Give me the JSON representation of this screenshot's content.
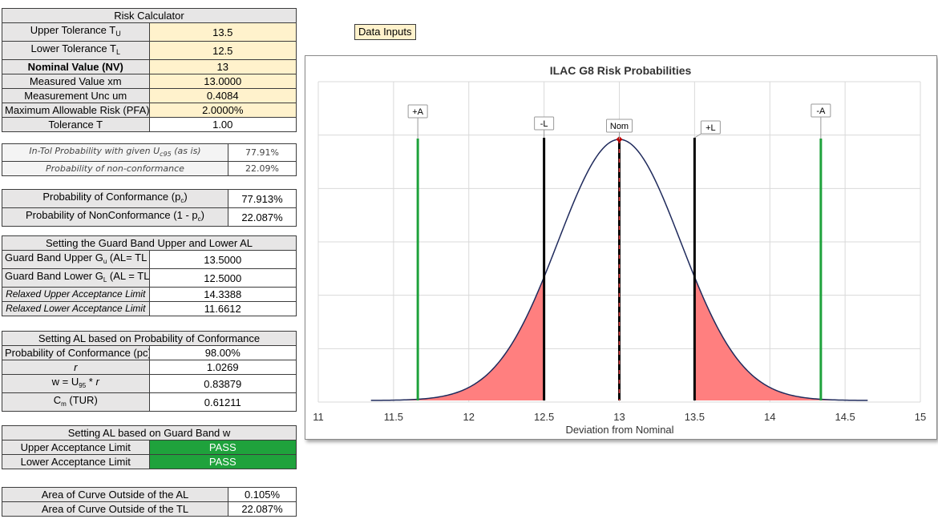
{
  "calculator": {
    "title": "Risk Calculator",
    "upper_tol_label": "Upper Tolerance T",
    "upper_tol_sub": "U",
    "upper_tol_value": "13.5",
    "lower_tol_label": "Lower Tolerance T",
    "lower_tol_sub": "L",
    "lower_tol_value": "12.5",
    "nominal_label": "Nominal Value (NV)",
    "nominal_value": "13",
    "measured_label": "Measured Value xm",
    "measured_value": "13.0000",
    "unc_label": "Measurement Unc um",
    "unc_value": "0.4084",
    "pfa_label": "Maximum Allowable Risk (PFA)",
    "pfa_value": "2.0000%",
    "tolerance_label": "Tolerance T",
    "tolerance_value": "1.00"
  },
  "intol": {
    "row1_label_a": "In-Tol Probability with given U",
    "row1_label_sub": "c95",
    "row1_label_b": " (as is)",
    "row1_value": "77.91%",
    "row2_label": "Probability of non-conformance",
    "row2_value": "22.09%"
  },
  "conformance": {
    "row1_label_a": "Probability of Conformance (p",
    "row1_label_sub": "c",
    "row1_label_b": ")",
    "row1_value": "77.913%",
    "row2_label_a": "Probability of NonConformance (1 - p",
    "row2_label_sub": "c",
    "row2_label_b": ")",
    "row2_value": "22.087%"
  },
  "guard_band": {
    "header": "Setting the Guard Band Upper and Lower  AL",
    "upper_label_a": "Guard Band Upper G",
    "upper_label_sub": "u",
    "upper_label_b": " (AL= TL - w)",
    "upper_value": "13.5000",
    "lower_label_a": "Guard Band Lower G",
    "lower_label_sub": "L",
    "lower_label_b": " (AL = TL + w)",
    "lower_value": "12.5000",
    "relaxed_upper_label": "Relaxed Upper Acceptance Limit",
    "relaxed_upper_value": "14.3388",
    "relaxed_lower_label": "Relaxed Lower Acceptance Limit",
    "relaxed_lower_value": "11.6612"
  },
  "al_conformance": {
    "header": "Setting AL based on Probability of Conformance",
    "pc_label": "Probability of Conformance (pc)",
    "pc_value": "98.00%",
    "r_label": "r",
    "r_value": "1.0269",
    "w_label_a": "w = U",
    "w_label_sub": "95",
    "w_label_b": " * ",
    "w_label_r": "r",
    "w_value": "0.83879",
    "cm_label_a": "C",
    "cm_label_sub": "m",
    "cm_label_b": " (TUR)",
    "cm_value": "0.61211"
  },
  "al_guard": {
    "header": "Setting AL based on Guard Band w",
    "upper_label": "Upper Acceptance Limit",
    "upper_value": "PASS",
    "lower_label": "Lower Acceptance Limit",
    "lower_value": "PASS",
    "pass_color": "#1fa23c"
  },
  "area": {
    "al_label": "Area of Curve Outside of the AL",
    "al_value": "0.105%",
    "tl_label": "Area of Curve Outside of the TL",
    "tl_value": "22.087%"
  },
  "data_inputs_label": "Data Inputs",
  "chart_data": {
    "type": "area",
    "title": "ILAC G8 Risk Probabilities",
    "xlabel": "Deviation from Nominal",
    "ylabel": "",
    "xlim": [
      11,
      15
    ],
    "x_ticks": [
      11,
      11.5,
      12,
      12.5,
      13,
      13.5,
      14,
      14.5,
      15
    ],
    "grid": true,
    "curve": {
      "mean": 13.0,
      "sd": 0.4084,
      "x_start": 11.35,
      "x_end": 14.65,
      "color": "#1f2a5c"
    },
    "shaded_regions": [
      {
        "from": 11.35,
        "to": 12.5,
        "color": "#ff7f7f"
      },
      {
        "from": 13.5,
        "to": 14.65,
        "color": "#ff7f7f"
      }
    ],
    "markers": [
      {
        "label": "+A",
        "x": 11.6612,
        "color": "#1fa23c",
        "style": "solid"
      },
      {
        "label": "-L",
        "x": 12.5,
        "color": "#000000",
        "style": "solid"
      },
      {
        "label": "Nom",
        "x": 13.0,
        "color": "#000000",
        "style": "dashed"
      },
      {
        "label": "+L",
        "x": 13.5,
        "color": "#000000",
        "style": "solid"
      },
      {
        "label": "-A",
        "x": 14.3388,
        "color": "#1fa23c",
        "style": "solid"
      }
    ]
  }
}
